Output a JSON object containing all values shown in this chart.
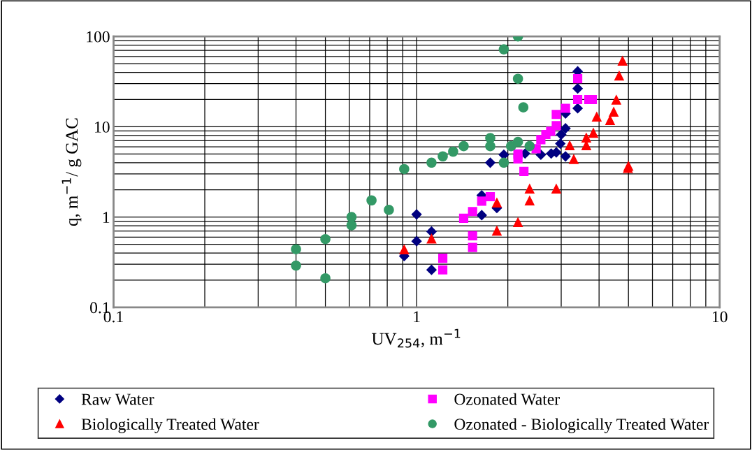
{
  "chart_data": {
    "type": "scatter",
    "xlabel": "UV$_{254}$, m$^{−1}$",
    "ylabel": "q, m$^{−1}$/ g GAC",
    "log": "xy",
    "xlim": [
      0.1,
      10
    ],
    "ylim": [
      0.1,
      100
    ],
    "xticks": [
      0.1,
      1,
      10
    ],
    "yticks": [
      0.1,
      1,
      10,
      100
    ],
    "grid": true,
    "legend": "bottom",
    "series": [
      {
        "name": "Raw Water",
        "color": "#000080",
        "marker": "diamond",
        "x": [
          0.91,
          1.0,
          1.0,
          1.12,
          1.12,
          1.64,
          1.64,
          1.75,
          1.84,
          1.94,
          2.28,
          2.57,
          2.78,
          2.89,
          2.98,
          3.0,
          3.1,
          3.1,
          3.1,
          3.4,
          3.4,
          3.4
        ],
        "values": [
          0.37,
          1.07,
          0.54,
          0.69,
          0.26,
          1.74,
          1.05,
          4.0,
          1.26,
          4.9,
          5.05,
          4.9,
          5.05,
          5.2,
          6.5,
          8.2,
          9.6,
          4.7,
          14,
          16,
          26.5,
          41
        ]
      },
      {
        "name": "Ozonated Water",
        "color": "#ff00ff",
        "marker": "square",
        "x": [
          1.22,
          1.22,
          1.43,
          1.53,
          1.53,
          1.53,
          1.64,
          1.75,
          2.16,
          2.16,
          2.26,
          2.48,
          2.57,
          2.67,
          2.77,
          2.89,
          2.89,
          3.1,
          3.4,
          3.4,
          3.7,
          3.8
        ],
        "values": [
          0.35,
          0.26,
          0.97,
          1.15,
          0.62,
          0.46,
          1.5,
          1.68,
          5.0,
          4.4,
          3.2,
          5.7,
          7.2,
          8.2,
          8.9,
          10.3,
          13.7,
          16,
          20,
          34,
          20,
          20
        ]
      },
      {
        "name": "Biologically Treated Water",
        "color": "#ff0000",
        "marker": "triangle",
        "x": [
          0.91,
          1.12,
          1.84,
          1.84,
          2.16,
          2.36,
          2.36,
          2.89,
          3.2,
          3.3,
          3.63,
          3.63,
          3.83,
          3.93,
          4.35,
          4.47,
          4.56,
          4.66,
          4.78,
          4.98,
          5.0
        ],
        "values": [
          0.44,
          0.58,
          1.45,
          0.71,
          0.88,
          2.07,
          1.53,
          2.07,
          6.25,
          4.4,
          7.6,
          6.25,
          8.6,
          13,
          11.9,
          14.7,
          20,
          37,
          54,
          3.5,
          3.7
        ]
      },
      {
        "name": "Ozonated - Biologically Treated Water",
        "color": "#339966",
        "marker": "circle",
        "x": [
          0.4,
          0.4,
          0.5,
          0.5,
          0.61,
          0.61,
          0.71,
          0.81,
          0.91,
          1.12,
          1.22,
          1.32,
          1.43,
          1.75,
          1.75,
          1.94,
          1.94,
          2.05,
          2.16,
          2.16,
          2.16,
          2.25,
          2.36
        ],
        "values": [
          0.44,
          0.29,
          0.57,
          0.21,
          1.0,
          0.81,
          1.53,
          1.2,
          3.4,
          4.0,
          4.7,
          5.3,
          6.1,
          7.5,
          6.1,
          72,
          4.0,
          6.1,
          100,
          34,
          6.8,
          16.4,
          6.1
        ]
      }
    ]
  }
}
